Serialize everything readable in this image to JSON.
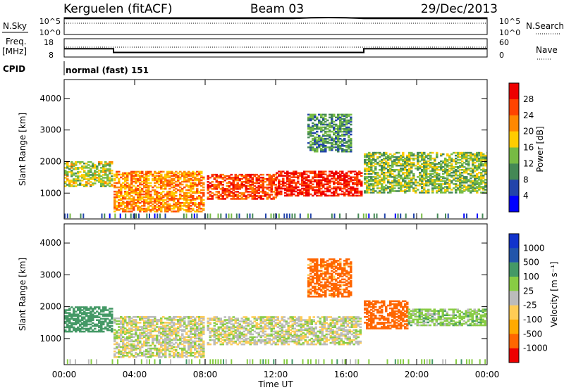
{
  "header": {
    "site": "Kerguelen (fitACF)",
    "beam": "Beam 03",
    "date": "29/Dec/2013"
  },
  "status_panels": {
    "nsky_label": "N.Sky",
    "nsky_ticks": [
      "10^5",
      "10^0"
    ],
    "nsearch_label": "N.Search",
    "nsearch_ticks": [
      "10^5",
      "10^0"
    ],
    "freq_label": "Freq.",
    "freq_unit": "[MHz]",
    "freq_ticks": [
      "18",
      "8"
    ],
    "nave_label": "Nave",
    "nave_ticks": [
      "60",
      "0"
    ],
    "cpid_label": "CPID",
    "cpid_value": "normal (fast) 151"
  },
  "x_axis": {
    "label": "Time UT",
    "ticks": [
      "00:00",
      "04:00",
      "08:00",
      "12:00",
      "16:00",
      "20:00",
      "00:00"
    ]
  },
  "colors": {
    "power_scale": [
      "#0000ff",
      "#2244aa",
      "#448855",
      "#77bb44",
      "#ffcc00",
      "#ff8800",
      "#ff4400",
      "#ee0000"
    ],
    "velocity_scale": [
      "#ee0000",
      "#ff6600",
      "#ffaa00",
      "#ffcc55",
      "#bbbbbb",
      "#88cc44",
      "#449966",
      "#2255aa",
      "#1133cc"
    ],
    "ground_scatter": "#bbbbbb"
  },
  "chart_data": [
    {
      "type": "line",
      "panel": "status",
      "xlim": [
        0,
        24
      ],
      "series": [
        {
          "name": "N.Sky",
          "x": [
            0,
            13,
            14,
            15,
            16,
            17,
            24
          ],
          "values": [
            500000,
            500000,
            900000,
            1000000,
            900000,
            500000,
            500000
          ]
        },
        {
          "name": "N.Search",
          "x": [
            0,
            24
          ],
          "values": [
            500000,
            500000
          ]
        }
      ]
    },
    {
      "type": "line",
      "panel": "frequency",
      "xlim": [
        0,
        24
      ],
      "series": [
        {
          "name": "Freq.",
          "x": [
            0,
            2.8,
            2.8,
            17,
            17,
            24
          ],
          "values": [
            12.5,
            12.5,
            10.5,
            10.5,
            12.5,
            12.5
          ]
        },
        {
          "name": "Nave",
          "x": [
            0,
            24
          ],
          "values": [
            40,
            40
          ]
        }
      ]
    },
    {
      "type": "heatmap",
      "quantity": "Power",
      "xlabel": "Time UT",
      "ylabel": "Slant Range [km]",
      "ylim": [
        180,
        4600
      ],
      "yticks": [
        1000,
        2000,
        3000,
        4000
      ],
      "xlim": [
        0,
        24
      ],
      "colorbar": {
        "label": "Power [dB]",
        "ticks": [
          4,
          8,
          12,
          16,
          20,
          24,
          28
        ]
      },
      "regions": [
        {
          "t": [
            0,
            2.7
          ],
          "range": [
            1200,
            2000
          ],
          "level": 14
        },
        {
          "t": [
            2.8,
            7.9
          ],
          "range": [
            400,
            1700
          ],
          "level": 20
        },
        {
          "t": [
            8.1,
            12
          ],
          "range": [
            800,
            1600
          ],
          "level": 24
        },
        {
          "t": [
            12,
            16.8
          ],
          "range": [
            900,
            1700
          ],
          "level": 27
        },
        {
          "t": [
            13.8,
            16.2
          ],
          "range": [
            2300,
            3500
          ],
          "level": 9
        },
        {
          "t": [
            17,
            24
          ],
          "range": [
            1000,
            2300
          ],
          "level": 12
        }
      ]
    },
    {
      "type": "heatmap",
      "quantity": "Velocity",
      "xlabel": "Time UT",
      "ylabel": "Slant Range [km]",
      "ylim": [
        180,
        4600
      ],
      "yticks": [
        1000,
        2000,
        3000,
        4000
      ],
      "xlim": [
        0,
        24
      ],
      "colorbar": {
        "label": "Velocity [m s⁻¹]",
        "ticks": [
          1000,
          500,
          100,
          25,
          -25,
          -100,
          -500,
          -1000
        ]
      },
      "regions": [
        {
          "t": [
            0,
            2.7
          ],
          "range": [
            1200,
            2000
          ],
          "velocity": 200
        },
        {
          "t": [
            2.8,
            7.9
          ],
          "range": [
            400,
            1700
          ],
          "velocity": 0
        },
        {
          "t": [
            8.1,
            16.8
          ],
          "range": [
            800,
            1700
          ],
          "velocity": 0
        },
        {
          "t": [
            13.8,
            16.2
          ],
          "range": [
            2300,
            3500
          ],
          "velocity": -150
        },
        {
          "t": [
            17,
            19.5
          ],
          "range": [
            1300,
            2200
          ],
          "velocity": -300
        },
        {
          "t": [
            19.5,
            24
          ],
          "range": [
            1400,
            1900
          ],
          "velocity": 60
        }
      ]
    }
  ]
}
